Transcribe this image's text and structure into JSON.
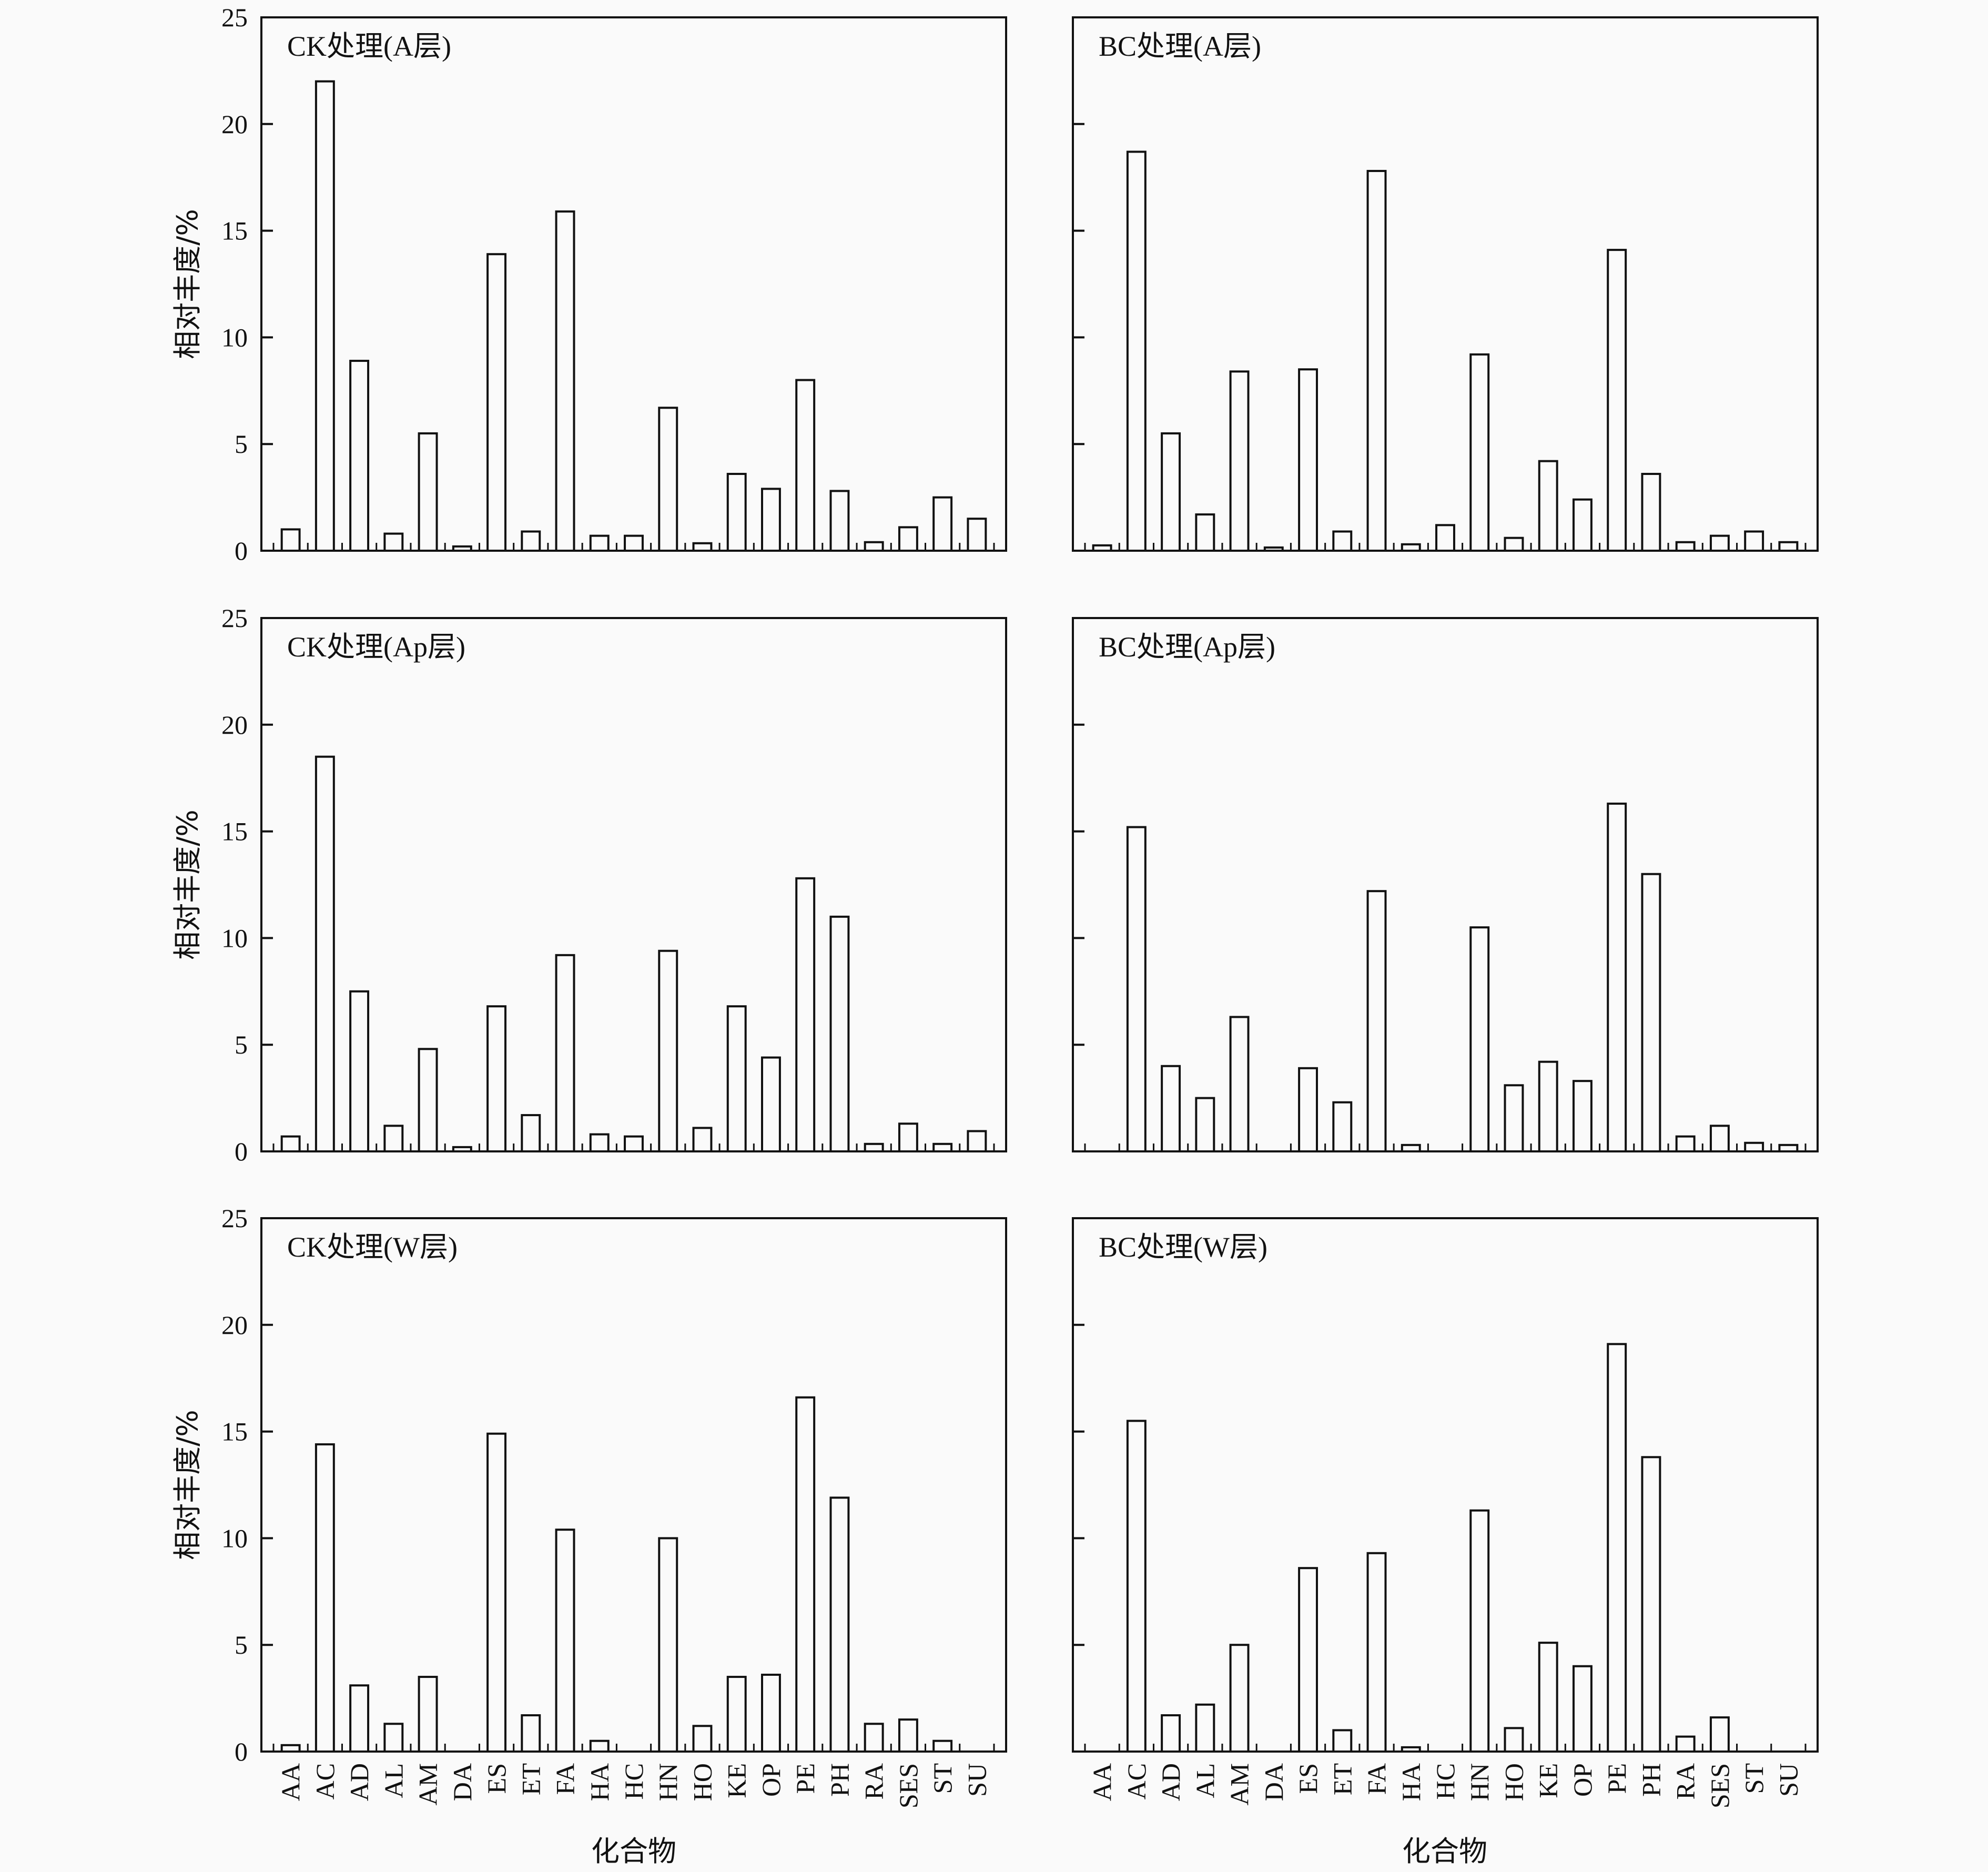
{
  "figure": {
    "ylabel": "相对丰度/%",
    "xlabel": "化合物",
    "categories": [
      "AA",
      "AC",
      "AD",
      "AL",
      "AM",
      "DA",
      "ES",
      "ET",
      "FA",
      "HA",
      "HC",
      "HN",
      "HO",
      "KE",
      "OP",
      "PE",
      "PH",
      "RA",
      "SES",
      "ST",
      "SU"
    ],
    "y_ticks": [
      "0",
      "5",
      "10",
      "15",
      "20",
      "25"
    ],
    "colors": {
      "bar_fill": "#fafafa",
      "stroke": "#111111",
      "background": "#fafafa"
    }
  },
  "chart_data": [
    {
      "type": "bar",
      "title": "CK处理(A层)",
      "ylim": [
        0,
        25
      ],
      "categories": [
        "AA",
        "AC",
        "AD",
        "AL",
        "AM",
        "DA",
        "ES",
        "ET",
        "FA",
        "HA",
        "HC",
        "HN",
        "HO",
        "KE",
        "OP",
        "PE",
        "PH",
        "RA",
        "SES",
        "ST",
        "SU"
      ],
      "values": [
        1.0,
        22.0,
        8.9,
        0.8,
        5.5,
        0.2,
        13.9,
        0.9,
        15.9,
        0.7,
        0.7,
        6.7,
        0.35,
        3.6,
        2.9,
        8.0,
        2.8,
        0.4,
        1.1,
        2.5,
        1.5
      ]
    },
    {
      "type": "bar",
      "title": "BC处理(A层)",
      "ylim": [
        0,
        25
      ],
      "categories": [
        "AA",
        "AC",
        "AD",
        "AL",
        "AM",
        "DA",
        "ES",
        "ET",
        "FA",
        "HA",
        "HC",
        "HN",
        "HO",
        "KE",
        "OP",
        "PE",
        "PH",
        "RA",
        "SES",
        "ST",
        "SU"
      ],
      "values": [
        0.25,
        18.7,
        5.5,
        1.7,
        8.4,
        0.15,
        8.5,
        0.9,
        17.8,
        0.3,
        1.2,
        9.2,
        0.6,
        4.2,
        2.4,
        14.1,
        3.6,
        0.4,
        0.7,
        0.9,
        0.4
      ]
    },
    {
      "type": "bar",
      "title": "CK处理(Ap层)",
      "ylim": [
        0,
        25
      ],
      "categories": [
        "AA",
        "AC",
        "AD",
        "AL",
        "AM",
        "DA",
        "ES",
        "ET",
        "FA",
        "HA",
        "HC",
        "HN",
        "HO",
        "KE",
        "OP",
        "PE",
        "PH",
        "RA",
        "SES",
        "ST",
        "SU"
      ],
      "values": [
        0.7,
        18.5,
        7.5,
        1.2,
        4.8,
        0.2,
        6.8,
        1.7,
        9.2,
        0.8,
        0.7,
        9.4,
        1.1,
        6.8,
        4.4,
        12.8,
        11.0,
        0.35,
        1.3,
        0.35,
        0.95
      ]
    },
    {
      "type": "bar",
      "title": "BC处理(Ap层)",
      "ylim": [
        0,
        25
      ],
      "categories": [
        "AA",
        "AC",
        "AD",
        "AL",
        "AM",
        "DA",
        "ES",
        "ET",
        "FA",
        "HA",
        "HC",
        "HN",
        "HO",
        "KE",
        "OP",
        "PE",
        "PH",
        "RA",
        "SES",
        "ST",
        "SU"
      ],
      "values": [
        0,
        15.2,
        4.0,
        2.5,
        6.3,
        0,
        3.9,
        2.3,
        12.2,
        0.3,
        0,
        10.5,
        3.1,
        4.2,
        3.3,
        16.3,
        13.0,
        0.7,
        1.2,
        0.4,
        0.3
      ]
    },
    {
      "type": "bar",
      "title": "CK处理(W层)",
      "ylim": [
        0,
        25
      ],
      "categories": [
        "AA",
        "AC",
        "AD",
        "AL",
        "AM",
        "DA",
        "ES",
        "ET",
        "FA",
        "HA",
        "HC",
        "HN",
        "HO",
        "KE",
        "OP",
        "PE",
        "PH",
        "RA",
        "SES",
        "ST",
        "SU"
      ],
      "values": [
        0.3,
        14.4,
        3.1,
        1.3,
        3.5,
        0,
        14.9,
        1.7,
        10.4,
        0.5,
        0,
        10.0,
        1.2,
        3.5,
        3.6,
        16.6,
        11.9,
        1.3,
        1.5,
        0.5,
        0
      ]
    },
    {
      "type": "bar",
      "title": "BC处理(W层)",
      "ylim": [
        0,
        25
      ],
      "categories": [
        "AA",
        "AC",
        "AD",
        "AL",
        "AM",
        "DA",
        "ES",
        "ET",
        "FA",
        "HA",
        "HC",
        "HN",
        "HO",
        "KE",
        "OP",
        "PE",
        "PH",
        "RA",
        "SES",
        "ST",
        "SU"
      ],
      "values": [
        0,
        15.5,
        1.7,
        2.2,
        5.0,
        0,
        8.6,
        1.0,
        9.3,
        0.2,
        0,
        11.3,
        1.1,
        5.1,
        4.0,
        19.1,
        13.8,
        0.7,
        1.6,
        0,
        0
      ]
    }
  ]
}
